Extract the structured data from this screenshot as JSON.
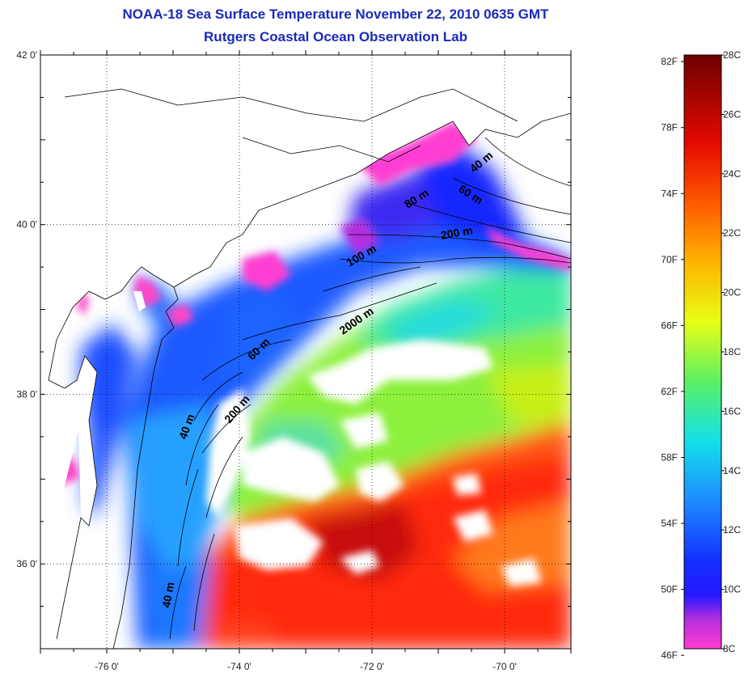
{
  "title": "NOAA-18 Sea Surface Temperature November 22, 2010 0635 GMT",
  "subtitle": "Rutgers Coastal Ocean Observation Lab",
  "map": {
    "lat_ticks": [
      {
        "value": 42,
        "label": "42 0'"
      },
      {
        "value": 40,
        "label": "40 0'"
      },
      {
        "value": 38,
        "label": "38 0'"
      },
      {
        "value": 36,
        "label": "36 0'"
      }
    ],
    "lon_ticks": [
      {
        "value": -76,
        "label": "-76 0'"
      },
      {
        "value": -74,
        "label": "-74 0'"
      },
      {
        "value": -72,
        "label": "-72 0'"
      },
      {
        "value": -70,
        "label": "-70 0'"
      }
    ],
    "lat_range": [
      35,
      42
    ],
    "lon_range": [
      -77,
      -69
    ],
    "grid": "dotted",
    "contour_labels": [
      "40 m",
      "60 m",
      "80 m",
      "200 m",
      "100 m",
      "2000 m",
      "60 m",
      "200 m",
      "40 m",
      "40 m"
    ]
  },
  "colorbar": {
    "fahrenheit_labels": [
      "82F",
      "78F",
      "74F",
      "70F",
      "66F",
      "62F",
      "58F",
      "54F",
      "50F",
      "46F"
    ],
    "celsius_labels": [
      "28C",
      "26C",
      "24C",
      "22C",
      "20C",
      "18C",
      "16C",
      "14C",
      "12C",
      "10C",
      "8C"
    ],
    "celsius_range": [
      8,
      28
    ],
    "colors": [
      "#ff3cd2",
      "#8a28d2",
      "#1414ff",
      "#1e78ff",
      "#14dcf0",
      "#3cf07a",
      "#c8ff14",
      "#ffdc00",
      "#ff8c00",
      "#ff1e00",
      "#a00000",
      "#6e0000"
    ]
  }
}
